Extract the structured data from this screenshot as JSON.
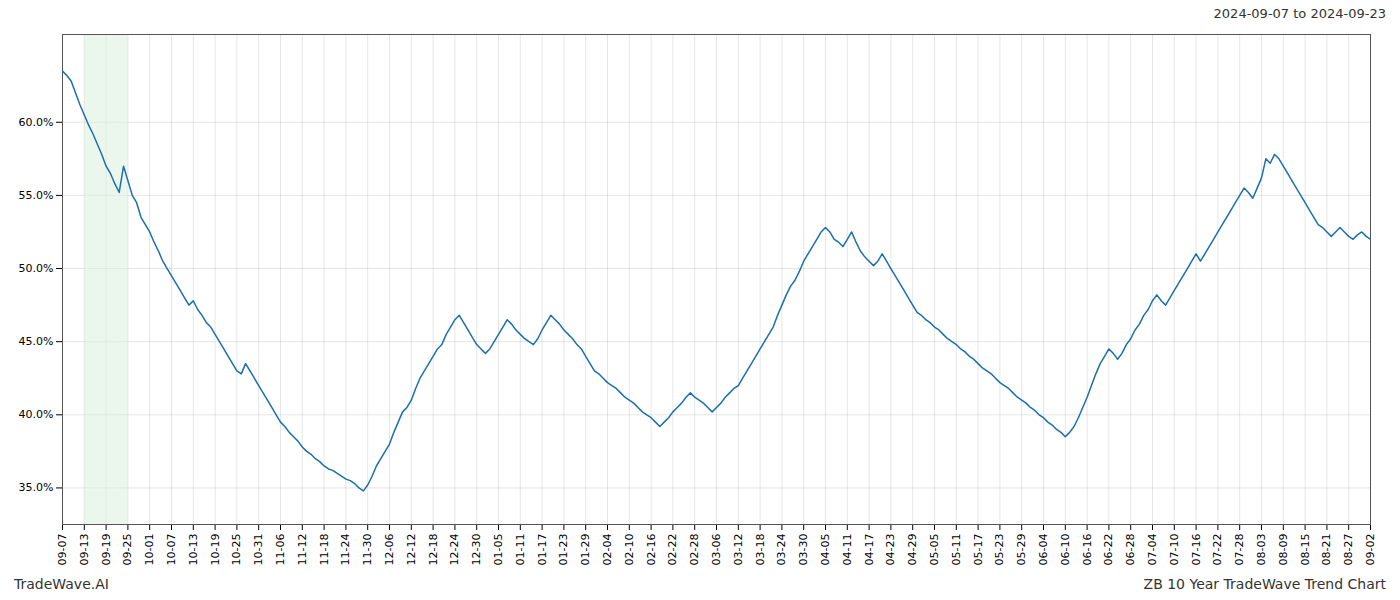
{
  "chart_data": {
    "type": "line",
    "title": "2024-09-07 to 2024-09-23",
    "annotations": [
      "TradeWave.AI",
      "ZB 10 Year TradeWave Trend Chart"
    ],
    "color": "#1c6fad",
    "grid": true,
    "shaded_region": {
      "from": "09-13",
      "to": "09-25",
      "color": "#daeedd"
    },
    "ylim": [
      32.5,
      66.0
    ],
    "yticks": [
      {
        "value": 35.0,
        "label": "35.0%"
      },
      {
        "value": 40.0,
        "label": "40.0%"
      },
      {
        "value": 45.0,
        "label": "45.0%"
      },
      {
        "value": 50.0,
        "label": "50.0%"
      },
      {
        "value": 55.0,
        "label": "55.0%"
      },
      {
        "value": 60.0,
        "label": "60.0%"
      }
    ],
    "categories": [
      "09-07",
      null,
      null,
      null,
      null,
      "09-13",
      null,
      null,
      null,
      null,
      "09-19",
      null,
      null,
      null,
      null,
      "09-25",
      null,
      null,
      null,
      null,
      "10-01",
      null,
      null,
      null,
      null,
      "10-07",
      null,
      null,
      null,
      null,
      "10-13",
      null,
      null,
      null,
      null,
      "10-19",
      null,
      null,
      null,
      null,
      "10-25",
      null,
      null,
      null,
      null,
      "10-31",
      null,
      null,
      null,
      null,
      "11-06",
      null,
      null,
      null,
      null,
      "11-12",
      null,
      null,
      null,
      null,
      "11-18",
      null,
      null,
      null,
      null,
      "11-24",
      null,
      null,
      null,
      null,
      "11-30",
      null,
      null,
      null,
      null,
      "12-06",
      null,
      null,
      null,
      null,
      "12-12",
      null,
      null,
      null,
      null,
      "12-18",
      null,
      null,
      null,
      null,
      "12-24",
      null,
      null,
      null,
      null,
      "12-30",
      null,
      null,
      null,
      null,
      "01-05",
      null,
      null,
      null,
      null,
      "01-11",
      null,
      null,
      null,
      null,
      "01-17",
      null,
      null,
      null,
      null,
      "01-23",
      null,
      null,
      null,
      null,
      "01-29",
      null,
      null,
      null,
      null,
      "02-04",
      null,
      null,
      null,
      null,
      "02-10",
      null,
      null,
      null,
      null,
      "02-16",
      null,
      null,
      null,
      null,
      "02-22",
      null,
      null,
      null,
      null,
      "02-28",
      null,
      null,
      null,
      null,
      "03-06",
      null,
      null,
      null,
      null,
      "03-12",
      null,
      null,
      null,
      null,
      "03-18",
      null,
      null,
      null,
      null,
      "03-24",
      null,
      null,
      null,
      null,
      "03-30",
      null,
      null,
      null,
      null,
      "04-05",
      null,
      null,
      null,
      null,
      "04-11",
      null,
      null,
      null,
      null,
      "04-17",
      null,
      null,
      null,
      null,
      "04-23",
      null,
      null,
      null,
      null,
      "04-29",
      null,
      null,
      null,
      null,
      "05-05",
      null,
      null,
      null,
      null,
      "05-11",
      null,
      null,
      null,
      null,
      "05-17",
      null,
      null,
      null,
      null,
      "05-23",
      null,
      null,
      null,
      null,
      "05-29",
      null,
      null,
      null,
      null,
      "06-04",
      null,
      null,
      null,
      null,
      "06-10",
      null,
      null,
      null,
      null,
      "06-16",
      null,
      null,
      null,
      null,
      "06-22",
      null,
      null,
      null,
      null,
      "06-28",
      null,
      null,
      null,
      null,
      "07-04",
      null,
      null,
      null,
      null,
      "07-10",
      null,
      null,
      null,
      null,
      "07-16",
      null,
      null,
      null,
      null,
      "07-22",
      null,
      null,
      null,
      null,
      "07-28",
      null,
      null,
      null,
      null,
      "08-03",
      null,
      null,
      null,
      null,
      "08-09",
      null,
      null,
      null,
      null,
      "08-15",
      null,
      null,
      null,
      null,
      "08-21",
      null,
      null,
      null,
      null,
      "08-27",
      null,
      null,
      null,
      null,
      "09-02"
    ],
    "values": [
      63.5,
      63.2,
      62.8,
      62.0,
      61.2,
      60.5,
      59.8,
      59.2,
      58.5,
      57.8,
      57.0,
      56.5,
      55.8,
      55.2,
      57.0,
      56.0,
      55.0,
      54.5,
      53.5,
      53.0,
      52.5,
      51.8,
      51.2,
      50.5,
      50.0,
      49.5,
      49.0,
      48.5,
      48.0,
      47.5,
      47.8,
      47.2,
      46.8,
      46.3,
      46.0,
      45.5,
      45.0,
      44.5,
      44.0,
      43.5,
      43.0,
      42.8,
      43.5,
      43.0,
      42.5,
      42.0,
      41.5,
      41.0,
      40.5,
      40.0,
      39.5,
      39.2,
      38.8,
      38.5,
      38.2,
      37.8,
      37.5,
      37.3,
      37.0,
      36.8,
      36.5,
      36.3,
      36.2,
      36.0,
      35.8,
      35.6,
      35.5,
      35.3,
      35.0,
      34.8,
      35.2,
      35.8,
      36.5,
      37.0,
      37.5,
      38.0,
      38.8,
      39.5,
      40.2,
      40.5,
      41.0,
      41.8,
      42.5,
      43.0,
      43.5,
      44.0,
      44.5,
      44.8,
      45.5,
      46.0,
      46.5,
      46.8,
      46.3,
      45.8,
      45.3,
      44.8,
      44.5,
      44.2,
      44.5,
      45.0,
      45.5,
      46.0,
      46.5,
      46.2,
      45.8,
      45.5,
      45.2,
      45.0,
      44.8,
      45.2,
      45.8,
      46.3,
      46.8,
      46.5,
      46.2,
      45.8,
      45.5,
      45.2,
      44.8,
      44.5,
      44.0,
      43.5,
      43.0,
      42.8,
      42.5,
      42.2,
      42.0,
      41.8,
      41.5,
      41.2,
      41.0,
      40.8,
      40.5,
      40.2,
      40.0,
      39.8,
      39.5,
      39.2,
      39.5,
      39.8,
      40.2,
      40.5,
      40.8,
      41.2,
      41.5,
      41.2,
      41.0,
      40.8,
      40.5,
      40.2,
      40.5,
      40.8,
      41.2,
      41.5,
      41.8,
      42.0,
      42.5,
      43.0,
      43.5,
      44.0,
      44.5,
      45.0,
      45.5,
      46.0,
      46.8,
      47.5,
      48.2,
      48.8,
      49.2,
      49.8,
      50.5,
      51.0,
      51.5,
      52.0,
      52.5,
      52.8,
      52.5,
      52.0,
      51.8,
      51.5,
      52.0,
      52.5,
      51.8,
      51.2,
      50.8,
      50.5,
      50.2,
      50.5,
      51.0,
      50.5,
      50.0,
      49.5,
      49.0,
      48.5,
      48.0,
      47.5,
      47.0,
      46.8,
      46.5,
      46.3,
      46.0,
      45.8,
      45.5,
      45.2,
      45.0,
      44.8,
      44.5,
      44.3,
      44.0,
      43.8,
      43.5,
      43.2,
      43.0,
      42.8,
      42.5,
      42.2,
      42.0,
      41.8,
      41.5,
      41.2,
      41.0,
      40.8,
      40.5,
      40.3,
      40.0,
      39.8,
      39.5,
      39.3,
      39.0,
      38.8,
      38.5,
      38.8,
      39.2,
      39.8,
      40.5,
      41.2,
      42.0,
      42.8,
      43.5,
      44.0,
      44.5,
      44.2,
      43.8,
      44.2,
      44.8,
      45.2,
      45.8,
      46.2,
      46.8,
      47.2,
      47.8,
      48.2,
      47.8,
      47.5,
      48.0,
      48.5,
      49.0,
      49.5,
      50.0,
      50.5,
      51.0,
      50.5,
      51.0,
      51.5,
      52.0,
      52.5,
      53.0,
      53.5,
      54.0,
      54.5,
      55.0,
      55.5,
      55.2,
      54.8,
      55.5,
      56.2,
      57.5,
      57.2,
      57.8,
      57.5,
      57.0,
      56.5,
      56.0,
      55.5,
      55.0,
      54.5,
      54.0,
      53.5,
      53.0,
      52.8,
      52.5,
      52.2,
      52.5,
      52.8,
      52.5,
      52.2,
      52.0,
      52.3,
      52.5,
      52.2,
      52.0
    ]
  }
}
